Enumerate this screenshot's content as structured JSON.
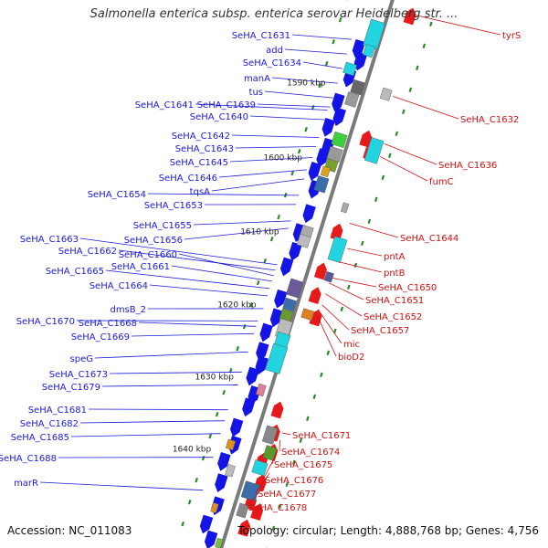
{
  "title": "Salmonella enterica subsp. enterica serovar Heidelberg str. ...",
  "accession": "Accession: NC_011083",
  "topology": "Topology: circular; Length: 4,888,768 bp; Genes: 4,756",
  "colors": {
    "left_label": "#1a1ad8",
    "right_label": "#cc1111",
    "tick": "#2a8a2a",
    "backbone": "#7a7a7a"
  },
  "kbp_labels": [
    "1590 kbp",
    "1600 kbp",
    "1610 kbp",
    "1620 kbp",
    "1630 kbp",
    "1640 kbp"
  ],
  "left_genes": [
    "SeHA_C1631",
    "add",
    "SeHA_C1634",
    "manA",
    "tus",
    "SeHA_C1641",
    "SeHA_C1639",
    "SeHA_C1640",
    "SeHA_C1642",
    "SeHA_C1643",
    "SeHA_C1645",
    "SeHA_C1646",
    "tqsA",
    "SeHA_C1654",
    "SeHA_C1653",
    "SeHA_C1655",
    "SeHA_C1656",
    "SeHA_C1663",
    "SeHA_C1662",
    "SeHA_C1660",
    "SeHA_C1661",
    "SeHA_C1665",
    "SeHA_C1664",
    "dmsB_2",
    "SeHA_C1670",
    "SeHA_C1668",
    "SeHA_C1669",
    "speG",
    "SeHA_C1673",
    "SeHA_C1679",
    "SeHA_C1681",
    "SeHA_C1682",
    "SeHA_C1685",
    "SeHA_C1688",
    "marR"
  ],
  "right_genes": [
    "tyrS",
    "SeHA_C1632",
    "SeHA_C1636",
    "fumC",
    "SeHA_C1644",
    "pntA",
    "pntB",
    "SeHA_C1650",
    "SeHA_C1651",
    "SeHA_C1652",
    "SeHA_C1657",
    "mic",
    "bioD2",
    "SeHA_C1671",
    "SeHA_C1674",
    "SeHA_C1675",
    "SeHA_C1676",
    "SeHA_C1677",
    "SeHA_C1678"
  ]
}
